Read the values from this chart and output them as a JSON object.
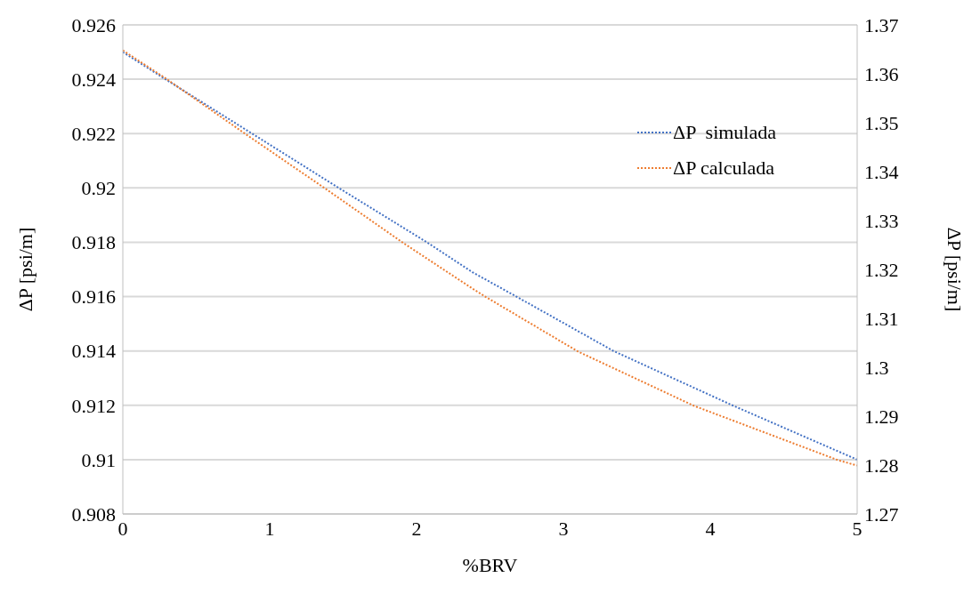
{
  "chart_data": {
    "type": "line",
    "xlabel": "%BRV",
    "ylabel": "ΔP [psi/m]",
    "y2label": "ΔP [psi/m]",
    "xlim": [
      0,
      5
    ],
    "xticks": [
      0,
      1,
      2,
      3,
      4,
      5
    ],
    "ylim": [
      0.908,
      0.926
    ],
    "yticks": [
      0.908,
      0.91,
      0.912,
      0.914,
      0.916,
      0.918,
      0.92,
      0.922,
      0.924,
      0.926
    ],
    "y2lim": [
      1.27,
      1.37
    ],
    "y2ticks": [
      1.27,
      1.28,
      1.29,
      1.3,
      1.31,
      1.32,
      1.33,
      1.34,
      1.35,
      1.36,
      1.37
    ],
    "grid": "y",
    "legend": "top right",
    "line_style": "dotted",
    "marker": "none",
    "series": [
      {
        "name": "ΔP  simulada",
        "color": "#4472c4",
        "x": [
          0,
          0.29,
          0.88,
          1.47,
          2.07,
          2.38,
          2.68,
          3.34,
          4.15,
          5
        ],
        "values": [
          0.925,
          0.924,
          0.922,
          0.92,
          0.918,
          0.9169,
          0.916,
          0.914,
          0.912,
          0.91
        ]
      },
      {
        "name": "ΔP calculada",
        "color": "#ed7d31",
        "axis": "y2",
        "x": [
          0,
          0.29,
          0.83,
          1.38,
          1.91,
          2.38,
          2.47,
          3.1,
          3.89,
          4.87,
          5
        ],
        "values": [
          1.3648,
          1.3591,
          1.3478,
          1.3365,
          1.3254,
          1.3161,
          1.3144,
          1.3032,
          1.2921,
          1.281,
          1.2799
        ]
      }
    ]
  }
}
